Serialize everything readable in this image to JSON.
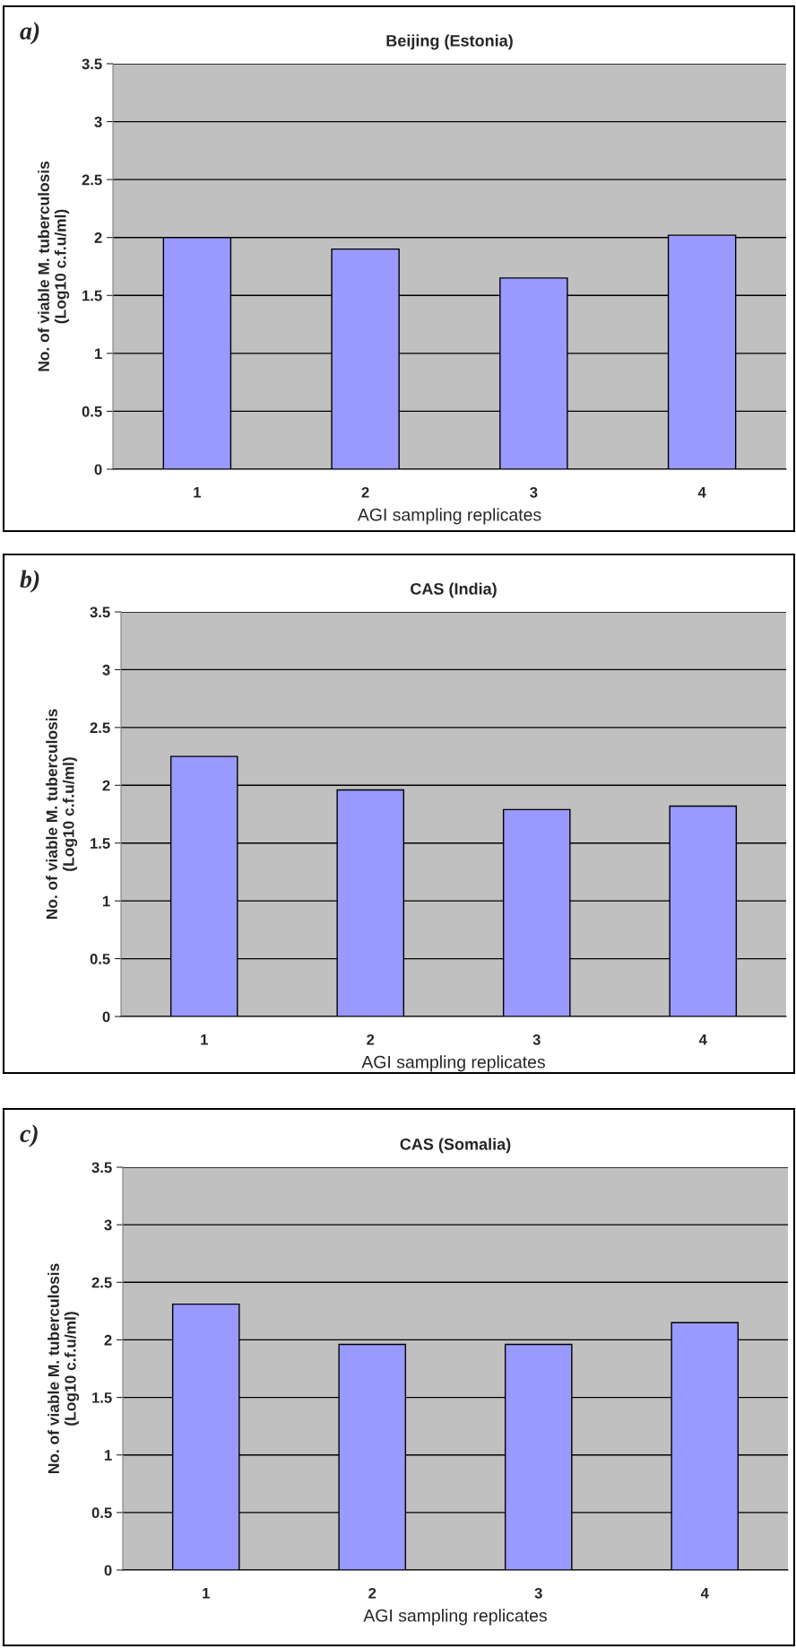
{
  "chart_data": [
    {
      "type": "bar",
      "title": "Beijing (Estonia)",
      "xlabel": "AGI sampling replicates",
      "ylabel": "No. of viable M. tuberculosis\n(Log10 c.f.u/ml)",
      "annotations": [
        "a)"
      ],
      "categories": [
        "1",
        "2",
        "3",
        "4"
      ],
      "values": [
        2.0,
        1.9,
        1.65,
        2.02
      ],
      "color": "#9999ff",
      "ylim": [
        0,
        3.5
      ],
      "yticks": [
        0,
        0.5,
        1,
        1.5,
        2,
        2.5,
        3,
        3.5
      ],
      "grid": "y",
      "legend": false
    },
    {
      "type": "bar",
      "title": "CAS (India)",
      "xlabel": "AGI sampling replicates",
      "ylabel": "No. of viable M. tuberculosis\n(Log10 c.f.u/ml)",
      "annotations": [
        "b)"
      ],
      "categories": [
        "1",
        "2",
        "3",
        "4"
      ],
      "values": [
        2.25,
        1.96,
        1.79,
        1.82
      ],
      "color": "#9999ff",
      "ylim": [
        0,
        3.5
      ],
      "yticks": [
        0,
        0.5,
        1,
        1.5,
        2,
        2.5,
        3,
        3.5
      ],
      "grid": "y",
      "legend": false
    },
    {
      "type": "bar",
      "title": "CAS (Somalia)",
      "xlabel": "AGI sampling replicates",
      "ylabel": "No. of viable M. tuberculosis\n(Log10 c.f.u/ml)",
      "annotations": [
        "c)"
      ],
      "categories": [
        "1",
        "2",
        "3",
        "4"
      ],
      "values": [
        2.31,
        1.96,
        1.96,
        2.15
      ],
      "color": "#9999ff",
      "ylim": [
        0,
        3.5
      ],
      "yticks": [
        0,
        0.5,
        1,
        1.5,
        2,
        2.5,
        3,
        3.5
      ],
      "grid": "y",
      "legend": false
    }
  ]
}
